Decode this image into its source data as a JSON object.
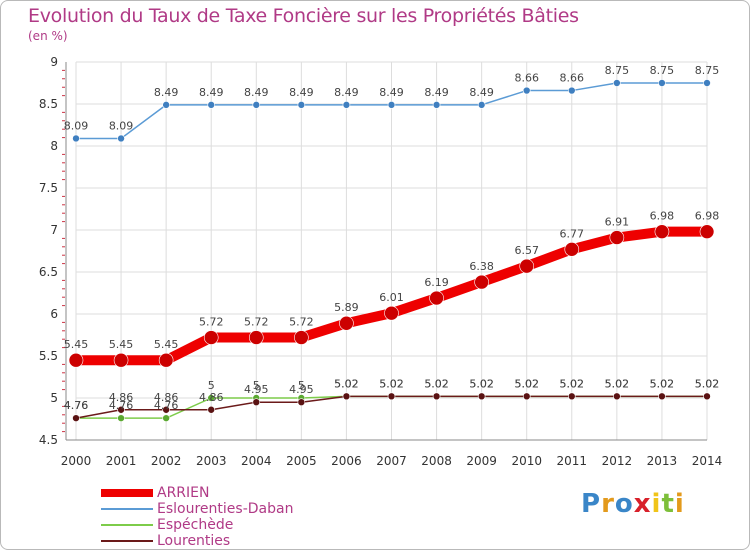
{
  "header": {
    "title": "Evolution du Taux de Taxe Foncière sur les Propriétés Bâties",
    "unit": "(en %)"
  },
  "logo": {
    "text": "Proxiti"
  },
  "chart_data": {
    "type": "line",
    "title": "Evolution du Taux de Taxe Foncière sur les Propriétés Bâties",
    "ylabel": "(en %)",
    "xlabel": "",
    "x": [
      "2000",
      "2001",
      "2002",
      "2003",
      "2004",
      "2005",
      "2006",
      "2007",
      "2008",
      "2009",
      "2010",
      "2011",
      "2012",
      "2013",
      "2014"
    ],
    "ylim": [
      4.5,
      9
    ],
    "yticks": [
      4.5,
      5,
      5.5,
      6,
      6.5,
      7,
      7.5,
      8,
      8.5,
      9
    ],
    "ytick_labels": [
      "4.5",
      "5",
      "5.5",
      "6",
      "6.5",
      "7",
      "7.5",
      "8",
      "8.5",
      "9"
    ],
    "grid": true,
    "legend_position": "bottom-left",
    "series": [
      {
        "name": "ARRIEN",
        "color": "#ee0000",
        "values": [
          5.45,
          5.45,
          5.45,
          5.72,
          5.72,
          5.72,
          5.89,
          6.01,
          6.19,
          6.38,
          6.57,
          6.77,
          6.91,
          6.98,
          6.98
        ],
        "labels": [
          "5.45",
          "5.45",
          "5.45",
          "5.72",
          "5.72",
          "5.72",
          "5.89",
          "6.01",
          "6.19",
          "6.38",
          "6.57",
          "6.77",
          "6.91",
          "6.98",
          "6.98"
        ]
      },
      {
        "name": "Eslourenties-Daban",
        "color": "#5b9bd5",
        "values": [
          8.09,
          8.09,
          8.49,
          8.49,
          8.49,
          8.49,
          8.49,
          8.49,
          8.49,
          8.49,
          8.66,
          8.66,
          8.75,
          8.75,
          8.75
        ],
        "labels": [
          "8.09",
          "8.09",
          "8.49",
          "8.49",
          "8.49",
          "8.49",
          "8.49",
          "8.49",
          "8.49",
          "8.49",
          "8.66",
          "8.66",
          "8.75",
          "8.75",
          "8.75"
        ]
      },
      {
        "name": "Espéchède",
        "color": "#7dcc4a",
        "values": [
          4.76,
          4.76,
          4.76,
          5,
          5,
          5,
          5.02,
          5.02,
          5.02,
          5.02,
          5.02,
          5.02,
          5.02,
          5.02,
          5.02
        ],
        "labels": [
          "4.76",
          "4.76",
          "4.76",
          "5",
          "5",
          "5",
          "5.02",
          "5.02",
          "5.02",
          "5.02",
          "5.02",
          "5.02",
          "5.02",
          "5.02",
          "5.02"
        ]
      },
      {
        "name": "Lourenties",
        "color": "#6b1a1a",
        "values": [
          4.76,
          4.86,
          4.86,
          4.86,
          4.95,
          4.95,
          5.02,
          5.02,
          5.02,
          5.02,
          5.02,
          5.02,
          5.02,
          5.02,
          5.02
        ],
        "labels": [
          "4.76",
          "4.86",
          "4.86",
          "4.86",
          "4.95",
          "4.95",
          "5.02",
          "5.02",
          "5.02",
          "5.02",
          "5.02",
          "5.02",
          "5.02",
          "5.02",
          "5.02"
        ]
      }
    ]
  }
}
